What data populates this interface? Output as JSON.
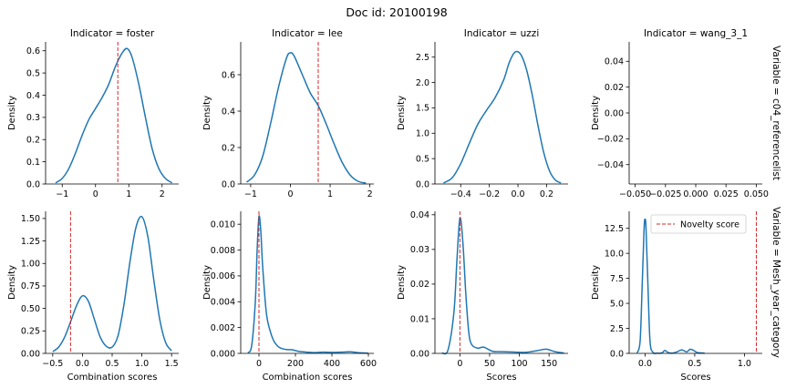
{
  "title": "Doc id: 20100198",
  "colors": {
    "kde": "#1f77b4",
    "novelty": "#d62728",
    "axis": "#000000"
  },
  "legend": {
    "label": "Novelty score",
    "position": "upper-center of bottom-right panel"
  },
  "row_labels": [
    "Variable = c04_referencelist",
    "Variable = Mesh_year_category"
  ],
  "chart_data": [
    {
      "type": "line",
      "title": "Indicator = foster",
      "xlabel": "",
      "ylabel": "Density",
      "xlim": [
        -1.5,
        2.5
      ],
      "ylim": [
        0,
        0.64
      ],
      "xticks": [
        -1,
        0,
        1,
        2
      ],
      "xtick_labels": [
        "−1",
        "0",
        "1",
        "2"
      ],
      "yticks": [
        0,
        0.1,
        0.2,
        0.3,
        0.4,
        0.5,
        0.6
      ],
      "ytick_labels": [
        "0.0",
        "0.1",
        "0.2",
        "0.3",
        "0.4",
        "0.5",
        "0.6"
      ],
      "novelty_score": 0.67,
      "series": [
        {
          "x": [
            -1.2,
            -1.0,
            -0.8,
            -0.6,
            -0.4,
            -0.2,
            0.0,
            0.2,
            0.4,
            0.6,
            0.8,
            0.95,
            1.1,
            1.3,
            1.5,
            1.7,
            1.9,
            2.1,
            2.3
          ],
          "y": [
            0.005,
            0.025,
            0.07,
            0.14,
            0.22,
            0.29,
            0.34,
            0.39,
            0.45,
            0.53,
            0.59,
            0.61,
            0.57,
            0.45,
            0.3,
            0.16,
            0.07,
            0.025,
            0.005
          ]
        }
      ]
    },
    {
      "type": "line",
      "title": "Indicator = lee",
      "xlabel": "",
      "ylabel": "Density",
      "xlim": [
        -1.25,
        2.1
      ],
      "ylim": [
        0,
        0.78
      ],
      "xticks": [
        -1,
        0,
        1,
        2
      ],
      "xtick_labels": [
        "−1",
        "0",
        "1",
        "2"
      ],
      "yticks": [
        0,
        0.2,
        0.4,
        0.6
      ],
      "ytick_labels": [
        "0.0",
        "0.2",
        "0.4",
        "0.6"
      ],
      "novelty_score": 0.7,
      "series": [
        {
          "x": [
            -1.1,
            -0.9,
            -0.7,
            -0.5,
            -0.3,
            -0.1,
            0.0,
            0.1,
            0.3,
            0.5,
            0.7,
            0.9,
            1.1,
            1.3,
            1.5,
            1.7,
            1.9
          ],
          "y": [
            0.01,
            0.05,
            0.15,
            0.33,
            0.53,
            0.69,
            0.72,
            0.7,
            0.6,
            0.5,
            0.43,
            0.33,
            0.22,
            0.12,
            0.05,
            0.015,
            0.005
          ]
        }
      ]
    },
    {
      "type": "line",
      "title": "Indicator = uzzi",
      "xlabel": "",
      "ylabel": "Density",
      "xlim": [
        -0.58,
        0.35
      ],
      "ylim": [
        0,
        2.8
      ],
      "xticks": [
        -0.4,
        -0.2,
        0.0,
        0.2
      ],
      "xtick_labels": [
        "−0.4",
        "−0.2",
        "0.0",
        "0.2"
      ],
      "yticks": [
        0,
        0.5,
        1.0,
        1.5,
        2.0,
        2.5
      ],
      "ytick_labels": [
        "0.0",
        "0.5",
        "1.0",
        "1.5",
        "2.0",
        "2.5"
      ],
      "novelty_score": null,
      "series": [
        {
          "x": [
            -0.52,
            -0.46,
            -0.4,
            -0.34,
            -0.28,
            -0.22,
            -0.16,
            -0.1,
            -0.06,
            -0.02,
            0.02,
            0.06,
            0.1,
            0.14,
            0.18,
            0.22,
            0.26,
            0.3
          ],
          "y": [
            0.02,
            0.12,
            0.4,
            0.8,
            1.18,
            1.45,
            1.7,
            2.05,
            2.4,
            2.6,
            2.55,
            2.25,
            1.75,
            1.15,
            0.62,
            0.26,
            0.08,
            0.02
          ]
        }
      ]
    },
    {
      "type": "line",
      "title": "Indicator = wang_3_1",
      "xlabel": "",
      "ylabel": "Density",
      "xlim": [
        -0.055,
        0.055
      ],
      "ylim": [
        -0.055,
        0.055
      ],
      "xticks": [
        -0.05,
        -0.025,
        0.0,
        0.025,
        0.05
      ],
      "xtick_labels": [
        "−0.050",
        "−0.025",
        "0.000",
        "0.025",
        "0.050"
      ],
      "yticks": [
        -0.04,
        -0.02,
        0.0,
        0.02,
        0.04
      ],
      "ytick_labels": [
        "−0.04",
        "−0.02",
        "0.00",
        "0.02",
        "0.04"
      ],
      "novelty_score": null,
      "series": []
    },
    {
      "type": "line",
      "title": "",
      "xlabel": "Combination scores",
      "ylabel": "Density",
      "xlim": [
        -0.62,
        1.62
      ],
      "ylim": [
        0,
        1.58
      ],
      "xticks": [
        -0.5,
        0.0,
        0.5,
        1.0,
        1.5
      ],
      "xtick_labels": [
        "−0.5",
        "0.0",
        "0.5",
        "1.0",
        "1.5"
      ],
      "yticks": [
        0,
        0.25,
        0.5,
        0.75,
        1.0,
        1.25,
        1.5
      ],
      "ytick_labels": [
        "0.00",
        "0.25",
        "0.50",
        "0.75",
        "1.00",
        "1.25",
        "1.50"
      ],
      "novelty_score": -0.2,
      "series": [
        {
          "x": [
            -0.5,
            -0.4,
            -0.3,
            -0.2,
            -0.1,
            0.0,
            0.1,
            0.2,
            0.3,
            0.4,
            0.5,
            0.6,
            0.7,
            0.8,
            0.9,
            1.0,
            1.1,
            1.2,
            1.3,
            1.4,
            1.5
          ],
          "y": [
            0.02,
            0.07,
            0.18,
            0.35,
            0.53,
            0.64,
            0.58,
            0.38,
            0.18,
            0.08,
            0.07,
            0.2,
            0.55,
            1.02,
            1.4,
            1.52,
            1.3,
            0.82,
            0.38,
            0.12,
            0.03
          ]
        }
      ]
    },
    {
      "type": "line",
      "title": "",
      "xlabel": "Combination scores",
      "ylabel": "Density",
      "xlim": [
        -100,
        630
      ],
      "ylim": [
        0,
        0.011
      ],
      "xticks": [
        0,
        200,
        400,
        600
      ],
      "xtick_labels": [
        "0",
        "200",
        "400",
        "600"
      ],
      "yticks": [
        0,
        0.002,
        0.004,
        0.006,
        0.008,
        0.01
      ],
      "ytick_labels": [
        "0.000",
        "0.002",
        "0.004",
        "0.006",
        "0.008",
        "0.010"
      ],
      "novelty_score": 0,
      "series": [
        {
          "x": [
            -60,
            -40,
            -20,
            -10,
            0,
            10,
            20,
            40,
            60,
            80,
            100,
            120,
            150,
            180,
            220,
            260,
            300,
            350,
            400,
            450,
            500,
            530,
            560,
            600
          ],
          "y": [
            5e-05,
            0.0006,
            0.004,
            0.008,
            0.0106,
            0.0095,
            0.0068,
            0.0032,
            0.0018,
            0.001,
            0.0006,
            0.0004,
            0.0003,
            0.00028,
            0.00015,
            0.0001,
            6e-05,
            0.0001,
            8e-05,
            0.0001,
            0.00012,
            8e-05,
            4e-05,
            1e-05
          ]
        }
      ]
    },
    {
      "type": "line",
      "title": "",
      "xlabel": "Scores",
      "ylabel": "Density",
      "xlim": [
        -42,
        182
      ],
      "ylim": [
        0,
        0.041
      ],
      "xticks": [
        0,
        50,
        100,
        150
      ],
      "xtick_labels": [
        "0",
        "50",
        "100",
        "150"
      ],
      "yticks": [
        0,
        0.01,
        0.02,
        0.03,
        0.04
      ],
      "ytick_labels": [
        "0.00",
        "0.01",
        "0.02",
        "0.03",
        "0.04"
      ],
      "novelty_score": 0,
      "series": [
        {
          "x": [
            -30,
            -20,
            -10,
            -5,
            0,
            5,
            10,
            15,
            20,
            30,
            40,
            55,
            70,
            90,
            110,
            130,
            145,
            160,
            175
          ],
          "y": [
            0.0001,
            0.001,
            0.012,
            0.027,
            0.039,
            0.032,
            0.017,
            0.006,
            0.0025,
            0.0015,
            0.0018,
            0.0006,
            0.0005,
            0.0004,
            0.0003,
            0.0008,
            0.0012,
            0.0005,
            0.0001
          ]
        }
      ]
    },
    {
      "type": "line",
      "title": "",
      "xlabel": "Scores",
      "ylabel": "Density",
      "xlim": [
        -0.16,
        1.18
      ],
      "ylim": [
        0,
        14.2
      ],
      "xticks": [
        0.0,
        0.5,
        1.0
      ],
      "xtick_labels": [
        "0.0",
        "0.5",
        "1.0"
      ],
      "yticks": [
        0,
        2.5,
        5.0,
        7.5,
        10.0,
        12.5
      ],
      "ytick_labels": [
        "0.0",
        "2.5",
        "5.0",
        "7.5",
        "10.0",
        "12.5"
      ],
      "novelty_score": 1.12,
      "series": [
        {
          "x": [
            -0.08,
            -0.05,
            -0.03,
            -0.01,
            0.0,
            0.01,
            0.03,
            0.05,
            0.08,
            0.12,
            0.17,
            0.2,
            0.23,
            0.27,
            0.32,
            0.37,
            0.42,
            0.45,
            0.48,
            0.52,
            0.56,
            0.6
          ],
          "y": [
            0.05,
            1.2,
            6.5,
            12.4,
            13.4,
            12.4,
            6.5,
            1.2,
            0.1,
            0.02,
            0.05,
            0.3,
            0.1,
            0.02,
            0.15,
            0.35,
            0.15,
            0.4,
            0.35,
            0.1,
            0.05,
            0.02
          ]
        }
      ]
    }
  ]
}
